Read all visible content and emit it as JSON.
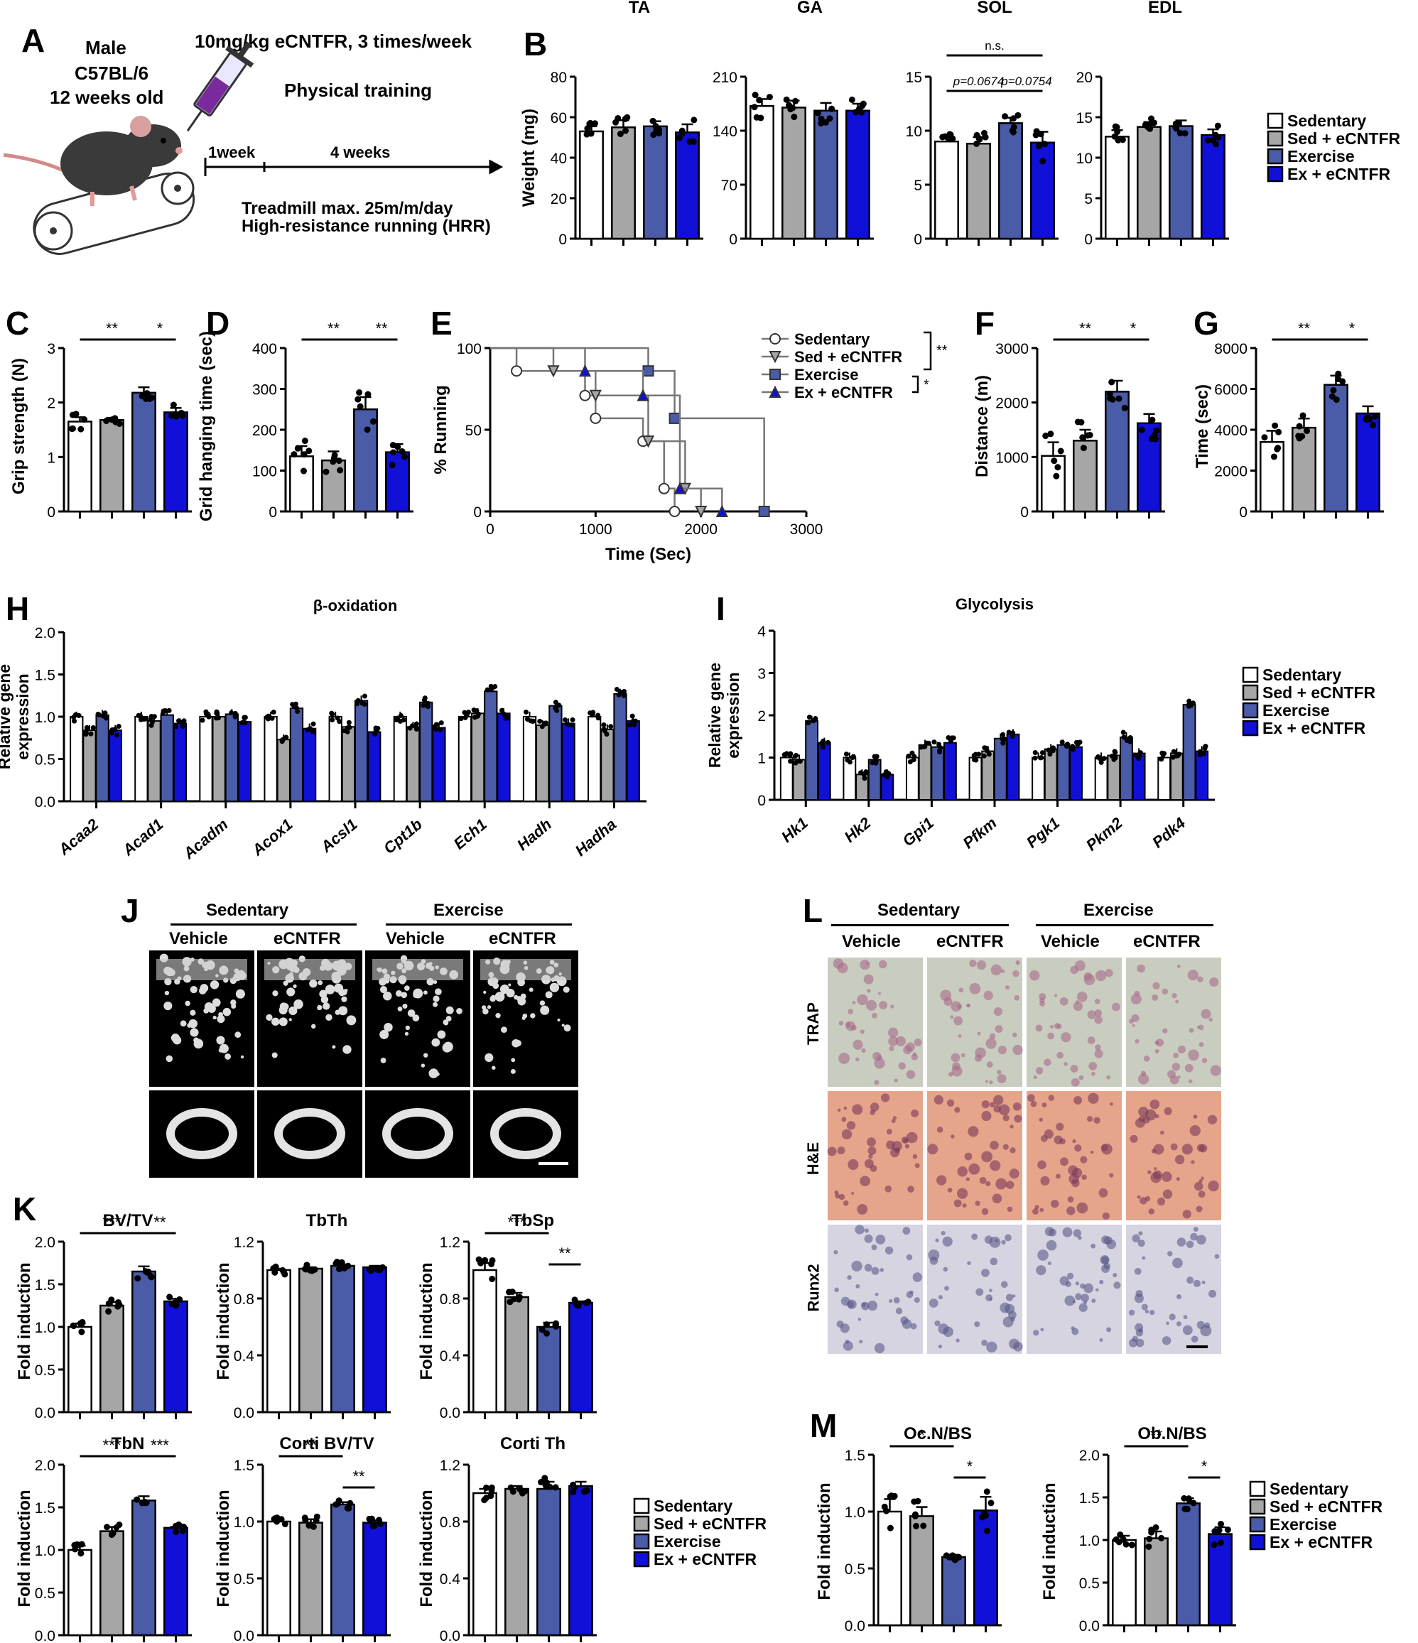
{
  "colors": {
    "sedentary": "#ffffff",
    "sed_ecntfr": "#a6a6a6",
    "exercise": "#4a5ba8",
    "ex_ecntfr": "#1010d8"
  },
  "legend": [
    "Sedentary",
    "Sed + eCNTFR",
    "Exercise",
    "Ex + eCNTFR"
  ],
  "panelA": {
    "label": "A",
    "mouse_text": [
      "Male",
      "C57BL/6",
      "12 weeks old"
    ],
    "dose": "10mg/kg eCNTFR, 3 times/week",
    "training": "Physical training",
    "t1": "1week",
    "t2": "4 weeks",
    "note1": "Treadmill max. 25m/m/day",
    "note2": "High-resistance running (HRR)"
  },
  "panelJ": {
    "label": "J",
    "group1": "Sedentary",
    "group2": "Exercise",
    "cols": [
      "Vehicle",
      "eCNTFR",
      "Vehicle",
      "eCNTFR"
    ]
  },
  "panelL": {
    "label": "L",
    "group1": "Sedentary",
    "group2": "Exercise",
    "cols": [
      "Vehicle",
      "eCNTFR",
      "Vehicle",
      "eCNTFR"
    ],
    "rows": [
      "TRAP",
      "H&E",
      "Runx2"
    ]
  },
  "chart_data": [
    {
      "id": "B-TA",
      "panel": "B",
      "type": "bar",
      "title": "TA",
      "ylabel": "Weight (mg)",
      "ylim": [
        0,
        80
      ],
      "yticks": [
        0,
        20,
        40,
        60,
        80
      ],
      "categories": [
        "Sedentary",
        "Sed + eCNTFR",
        "Exercise",
        "Ex + eCNTFR"
      ],
      "values": [
        53,
        55,
        55.5,
        52.5
      ],
      "errors": [
        2.5,
        3.5,
        2.5,
        4
      ]
    },
    {
      "id": "B-GA",
      "type": "bar",
      "title": "GA",
      "ylim": [
        0,
        210
      ],
      "yticks": [
        0,
        70,
        140,
        210
      ],
      "categories": [
        "Sedentary",
        "Sed + eCNTFR",
        "Exercise",
        "Ex + eCNTFR"
      ],
      "values": [
        172,
        170,
        166,
        166
      ],
      "errors": [
        9,
        9,
        10,
        9
      ]
    },
    {
      "id": "B-SOL",
      "type": "bar",
      "title": "SOL",
      "ylim": [
        0,
        15
      ],
      "yticks": [
        0,
        5,
        10,
        15
      ],
      "categories": [
        "Sedentary",
        "Sed + eCNTFR",
        "Exercise",
        "Ex + eCNTFR"
      ],
      "values": [
        9,
        8.8,
        10.7,
        8.9
      ],
      "errors": [
        0.4,
        0.6,
        0.5,
        1
      ],
      "annotations": [
        "n.s.",
        "p=0.0674",
        "p=0.0754"
      ]
    },
    {
      "id": "B-EDL",
      "type": "bar",
      "title": "EDL",
      "ylim": [
        0,
        20
      ],
      "yticks": [
        0,
        5,
        10,
        15,
        20
      ],
      "categories": [
        "Sedentary",
        "Sed + eCNTFR",
        "Exercise",
        "Ex + eCNTFR"
      ],
      "values": [
        12.6,
        13.8,
        13.9,
        12.8
      ],
      "errors": [
        0.8,
        0.6,
        0.7,
        0.7
      ]
    },
    {
      "id": "C",
      "panel": "C",
      "type": "bar",
      "ylabel": "Grip strength (N)",
      "ylim": [
        0,
        3
      ],
      "yticks": [
        0,
        1,
        2,
        3
      ],
      "categories": [
        "Sedentary",
        "Sed + eCNTFR",
        "Exercise",
        "Ex + eCNTFR"
      ],
      "values": [
        1.65,
        1.68,
        2.18,
        1.82
      ],
      "errors": [
        0.08,
        0.04,
        0.1,
        0.08
      ],
      "annotations": [
        "**",
        "*"
      ]
    },
    {
      "id": "D",
      "panel": "D",
      "type": "bar",
      "ylabel": "Grid hanging time (sec)",
      "ylim": [
        0,
        400
      ],
      "yticks": [
        0,
        100,
        200,
        300,
        400
      ],
      "categories": [
        "Sedentary",
        "Sed + eCNTFR",
        "Exercise",
        "Ex + eCNTFR"
      ],
      "values": [
        135,
        125,
        250,
        145
      ],
      "errors": [
        25,
        22,
        30,
        20
      ],
      "annotations": [
        "**",
        "**"
      ]
    },
    {
      "id": "E",
      "panel": "E",
      "type": "line",
      "xlabel": "Time (Sec)",
      "ylabel": "% Running",
      "xlim": [
        0,
        3000
      ],
      "ylim": [
        0,
        100
      ],
      "xticks": [
        0,
        1000,
        2000,
        3000
      ],
      "yticks": [
        0,
        50,
        100
      ],
      "series": [
        {
          "name": "Sedentary",
          "x": [
            0,
            250,
            250,
            900,
            900,
            1000,
            1000,
            1450,
            1450,
            1650,
            1650,
            1750,
            1750
          ],
          "y": [
            100,
            100,
            86,
            86,
            71,
            71,
            57,
            57,
            43,
            43,
            14,
            14,
            0
          ]
        },
        {
          "name": "Sed + eCNTFR",
          "x": [
            0,
            600,
            600,
            1000,
            1000,
            1500,
            1500,
            1850,
            1850,
            2000,
            2000
          ],
          "y": [
            100,
            100,
            86,
            86,
            71,
            71,
            43,
            43,
            14,
            14,
            0
          ]
        },
        {
          "name": "Exercise",
          "x": [
            0,
            1500,
            1500,
            1750,
            1750,
            2600,
            2600
          ],
          "y": [
            100,
            100,
            86,
            86,
            57,
            57,
            0
          ]
        },
        {
          "name": "Ex + eCNTFR",
          "x": [
            0,
            900,
            900,
            1450,
            1450,
            1800,
            1800,
            2200,
            2200
          ],
          "y": [
            100,
            100,
            86,
            86,
            71,
            71,
            14,
            14,
            0
          ]
        }
      ],
      "annotations": [
        "**",
        "*"
      ]
    },
    {
      "id": "F",
      "panel": "F",
      "type": "bar",
      "ylabel": "Distance (m)",
      "ylim": [
        0,
        3000
      ],
      "yticks": [
        0,
        1000,
        2000,
        3000
      ],
      "categories": [
        "Sedentary",
        "Sed + eCNTFR",
        "Exercise",
        "Ex + eCNTFR"
      ],
      "values": [
        1020,
        1300,
        2200,
        1620
      ],
      "errors": [
        250,
        200,
        200,
        170
      ],
      "annotations": [
        "**",
        "*"
      ]
    },
    {
      "id": "G",
      "panel": "G",
      "type": "bar",
      "ylabel": "Time (sec)",
      "ylim": [
        0,
        8000
      ],
      "yticks": [
        0,
        2000,
        4000,
        6000,
        8000
      ],
      "categories": [
        "Sedentary",
        "Sed + eCNTFR",
        "Exercise",
        "Ex + eCNTFR"
      ],
      "values": [
        3400,
        4100,
        6200,
        4800
      ],
      "errors": [
        550,
        450,
        450,
        350
      ],
      "annotations": [
        "**",
        "*"
      ]
    },
    {
      "id": "H",
      "panel": "H",
      "type": "bar",
      "title": "β-oxidation",
      "ylabel": "Relative gene expression",
      "ylim": [
        0,
        2
      ],
      "yticks": [
        0,
        0.5,
        1,
        1.5,
        2
      ],
      "categories": [
        "Acaa2",
        "Acad1",
        "Acadm",
        "Acox1",
        "Acsl1",
        "Cpt1b",
        "Ech1",
        "Hadh",
        "Hadha"
      ],
      "series": [
        {
          "name": "Sedentary",
          "values": [
            1.0,
            1.0,
            1.0,
            1.0,
            1.0,
            1.0,
            1.0,
            1.0,
            1.0
          ]
        },
        {
          "name": "Sed + eCNTFR",
          "values": [
            0.84,
            0.95,
            1.0,
            0.73,
            0.88,
            0.88,
            1.04,
            0.9,
            0.85
          ]
        },
        {
          "name": "Exercise",
          "values": [
            1.02,
            1.02,
            1.03,
            1.1,
            1.19,
            1.17,
            1.3,
            1.13,
            1.27
          ]
        },
        {
          "name": "Ex + eCNTFR",
          "values": [
            0.84,
            0.92,
            0.94,
            0.86,
            0.82,
            0.87,
            1.04,
            0.92,
            0.95
          ]
        }
      ]
    },
    {
      "id": "I",
      "panel": "I",
      "type": "bar",
      "title": "Glycolysis",
      "ylabel": "Relative gene expression",
      "ylim": [
        0,
        4
      ],
      "yticks": [
        0,
        1,
        2,
        3,
        4
      ],
      "categories": [
        "Hk1",
        "Hk2",
        "Gpi1",
        "Pfkm",
        "Pgk1",
        "Pkm2",
        "Pdk4"
      ],
      "series": [
        {
          "name": "Sedentary",
          "values": [
            1.0,
            1.0,
            1.0,
            1.0,
            1.0,
            1.0,
            1.0
          ]
        },
        {
          "name": "Sed + eCNTFR",
          "values": [
            0.95,
            0.6,
            1.3,
            1.15,
            1.2,
            1.05,
            1.1
          ]
        },
        {
          "name": "Exercise",
          "values": [
            1.87,
            0.95,
            1.25,
            1.45,
            1.3,
            1.48,
            2.25
          ]
        },
        {
          "name": "Ex + eCNTFR",
          "values": [
            1.35,
            0.6,
            1.35,
            1.55,
            1.25,
            1.1,
            1.15
          ]
        }
      ]
    },
    {
      "id": "K-BVTV",
      "panel": "K",
      "type": "bar",
      "title": "BV/TV",
      "ylabel": "Fold induction",
      "ylim": [
        0,
        2
      ],
      "yticks": [
        0,
        0.5,
        1,
        1.5,
        2
      ],
      "categories": [
        "Sedentary",
        "Sed + eCNTFR",
        "Exercise",
        "Ex + eCNTFR"
      ],
      "values": [
        1.0,
        1.25,
        1.65,
        1.3
      ],
      "errors": [
        0.04,
        0.04,
        0.06,
        0.03
      ],
      "annotations": [
        "***",
        "**"
      ]
    },
    {
      "id": "K-TbTh",
      "type": "bar",
      "title": "TbTh",
      "ylabel": "Fold induction",
      "ylim": [
        0,
        1.2
      ],
      "yticks": [
        0,
        0.4,
        0.8,
        1.2
      ],
      "categories": [
        "Sedentary",
        "Sed + eCNTFR",
        "Exercise",
        "Ex + eCNTFR"
      ],
      "values": [
        1.0,
        1.01,
        1.03,
        1.02
      ],
      "errors": [
        0.01,
        0.01,
        0.01,
        0.01
      ]
    },
    {
      "id": "K-TbSp",
      "type": "bar",
      "title": "TbSp",
      "ylabel": "Fold induction",
      "ylim": [
        0,
        1.2
      ],
      "yticks": [
        0,
        0.4,
        0.8,
        1.2
      ],
      "categories": [
        "Sedentary",
        "Sed + eCNTFR",
        "Exercise",
        "Ex + eCNTFR"
      ],
      "values": [
        1.0,
        0.81,
        0.6,
        0.77
      ],
      "errors": [
        0.05,
        0.03,
        0.03,
        0.01
      ],
      "annotations": [
        "***",
        "**"
      ]
    },
    {
      "id": "K-TbN",
      "type": "bar",
      "title": "TbN",
      "ylabel": "Fold induction",
      "ylim": [
        0,
        2
      ],
      "yticks": [
        0,
        0.5,
        1,
        1.5,
        2
      ],
      "categories": [
        "Sedentary",
        "Sed + eCNTFR",
        "Exercise",
        "Ex + eCNTFR"
      ],
      "values": [
        1.0,
        1.22,
        1.58,
        1.26
      ],
      "errors": [
        0.05,
        0.05,
        0.05,
        0.01
      ],
      "annotations": [
        "***",
        "***"
      ]
    },
    {
      "id": "K-CortiBVTV",
      "type": "bar",
      "title": "Corti BV/TV",
      "ylabel": "Fold induction",
      "ylim": [
        0,
        1.5
      ],
      "yticks": [
        0,
        0.5,
        1,
        1.5
      ],
      "categories": [
        "Sedentary",
        "Sed + eCNTFR",
        "Exercise",
        "Ex + eCNTFR"
      ],
      "values": [
        1.0,
        0.99,
        1.15,
        0.99
      ],
      "errors": [
        0.02,
        0.03,
        0.02,
        0.02
      ],
      "annotations": [
        "**",
        "**"
      ]
    },
    {
      "id": "K-CortiTh",
      "type": "bar",
      "title": "Corti Th",
      "ylabel": "Fold induction",
      "ylim": [
        0,
        1.2
      ],
      "yticks": [
        0,
        0.4,
        0.8,
        1.2
      ],
      "categories": [
        "Sedentary",
        "Sed + eCNTFR",
        "Exercise",
        "Ex + eCNTFR"
      ],
      "values": [
        1.0,
        1.03,
        1.03,
        1.05
      ],
      "errors": [
        0.03,
        0.02,
        0.05,
        0.03
      ]
    },
    {
      "id": "M-OcN",
      "panel": "M",
      "type": "bar",
      "title": "Oc.N/BS",
      "ylabel": "Fold induction",
      "ylim": [
        0,
        1.5
      ],
      "yticks": [
        0,
        0.5,
        1,
        1.5
      ],
      "categories": [
        "Sedentary",
        "Sed + eCNTFR",
        "Exercise",
        "Ex + eCNTFR"
      ],
      "values": [
        1.0,
        0.96,
        0.6,
        1.01
      ],
      "errors": [
        0.11,
        0.08,
        0.02,
        0.12
      ],
      "annotations": [
        "*",
        "*"
      ]
    },
    {
      "id": "M-ObN",
      "type": "bar",
      "title": "Ob.N/BS",
      "ylabel": "Fold induction",
      "ylim": [
        0,
        2
      ],
      "yticks": [
        0,
        0.5,
        1,
        1.5,
        2
      ],
      "categories": [
        "Sedentary",
        "Sed + eCNTFR",
        "Exercise",
        "Ex + eCNTFR"
      ],
      "values": [
        1.0,
        1.02,
        1.43,
        1.07
      ],
      "errors": [
        0.05,
        0.08,
        0.06,
        0.08
      ],
      "annotations": [
        "**",
        "*"
      ]
    }
  ]
}
